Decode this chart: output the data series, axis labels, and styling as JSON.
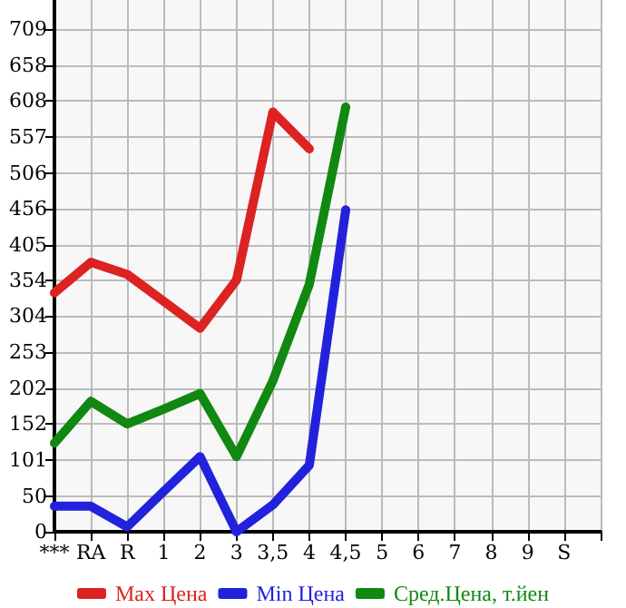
{
  "chart_data": {
    "type": "line",
    "categories": [
      "***",
      "RA",
      "R",
      "1",
      "2",
      "3",
      "3,5",
      "4",
      "4,5",
      "5",
      "6",
      "7",
      "8",
      "9",
      "S",
      null
    ],
    "series": [
      {
        "name": "Max Цена",
        "color": "#dd2222",
        "values": [
          337,
          380,
          363,
          325,
          287,
          355,
          592,
          540,
          null,
          null,
          null,
          null,
          null,
          null,
          null,
          null
        ]
      },
      {
        "name": "Min Цена",
        "color": "#2222dd",
        "values": [
          36,
          36,
          7,
          57,
          106,
          0,
          38,
          94,
          454,
          null,
          null,
          null,
          null,
          null,
          null,
          null
        ]
      },
      {
        "name": "Сред.Цена, т.йен",
        "color": "#118811",
        "values": [
          125,
          184,
          152,
          173,
          195,
          106,
          213,
          349,
          599,
          null,
          null,
          null,
          null,
          null,
          null,
          null
        ]
      }
    ],
    "ylim": [
      0,
      750
    ],
    "yticks": [
      0,
      50,
      101,
      152,
      202,
      253,
      304,
      354,
      405,
      456,
      506,
      557,
      608,
      658,
      709
    ],
    "grid": true,
    "legend": "bottom",
    "marker": "none",
    "line_style": "solid"
  }
}
